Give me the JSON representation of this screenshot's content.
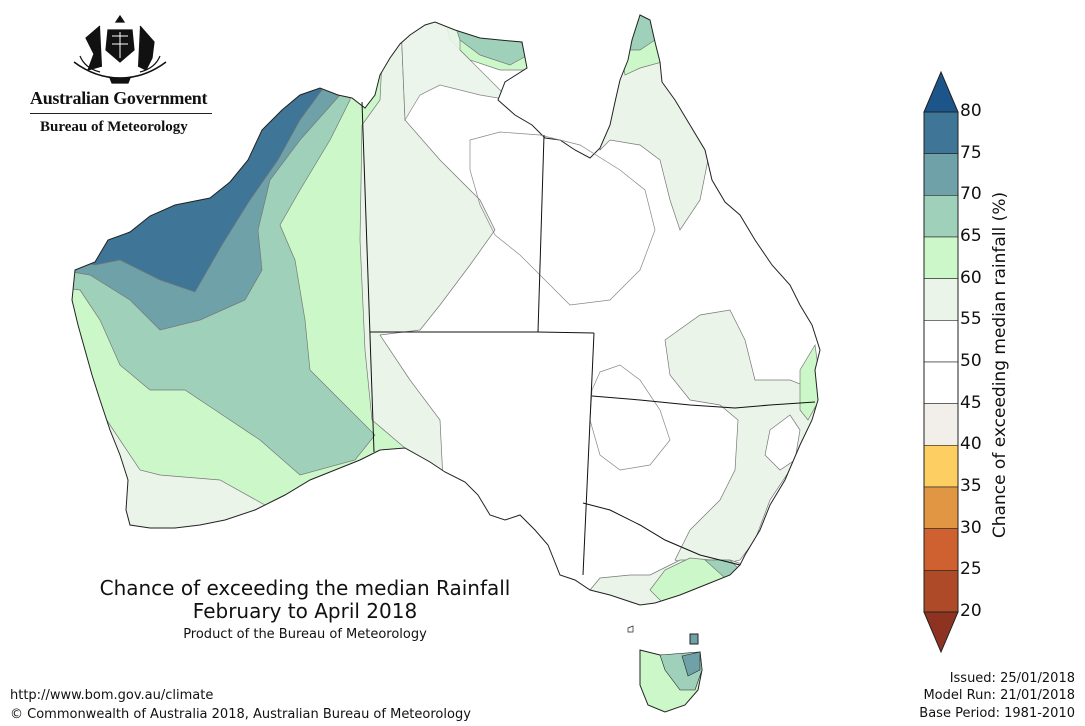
{
  "branding": {
    "government": "Australian Government",
    "agency": "Bureau of Meteorology"
  },
  "map": {
    "title_line1": "Chance of exceeding the median Rainfall",
    "title_line2": "February to April 2018",
    "subtitle": "Product of the Bureau of Meteorology",
    "region": "Australia"
  },
  "footer": {
    "url": "http://www.bom.gov.au/climate",
    "copyright": "© Commonwealth of Australia 2018, Australian Bureau of Meteorology",
    "issued": "Issued: 25/01/2018",
    "model_run": "Model Run: 21/01/2018",
    "base_period": "Base Period: 1981-2010"
  },
  "legend": {
    "title": "Chance of exceeding median rainfall (%)",
    "ticks": [
      "80",
      "75",
      "70",
      "65",
      "60",
      "55",
      "50",
      "45",
      "40",
      "35",
      "30",
      "25",
      "20"
    ],
    "bins": [
      {
        "range": "75-80",
        "color": "#3f7597"
      },
      {
        "range": "70-75",
        "color": "#6ea1a8"
      },
      {
        "range": "65-70",
        "color": "#9fd0ba"
      },
      {
        "range": "60-65",
        "color": "#ccf8c9"
      },
      {
        "range": "55-60",
        "color": "#eaf4e9"
      },
      {
        "range": "50-55",
        "color": "#ffffff"
      },
      {
        "range": "45-50",
        "color": "#ffffff"
      },
      {
        "range": "40-45",
        "color": "#f2eeea"
      },
      {
        "range": "35-40",
        "color": "#fdcf62"
      },
      {
        "range": "30-35",
        "color": "#e19643"
      },
      {
        "range": "25-30",
        "color": "#cf602f"
      },
      {
        "range": "20-25",
        "color": "#ae4a28"
      }
    ],
    "over_color": "#1b5589",
    "under_color": "#8e3322"
  }
}
